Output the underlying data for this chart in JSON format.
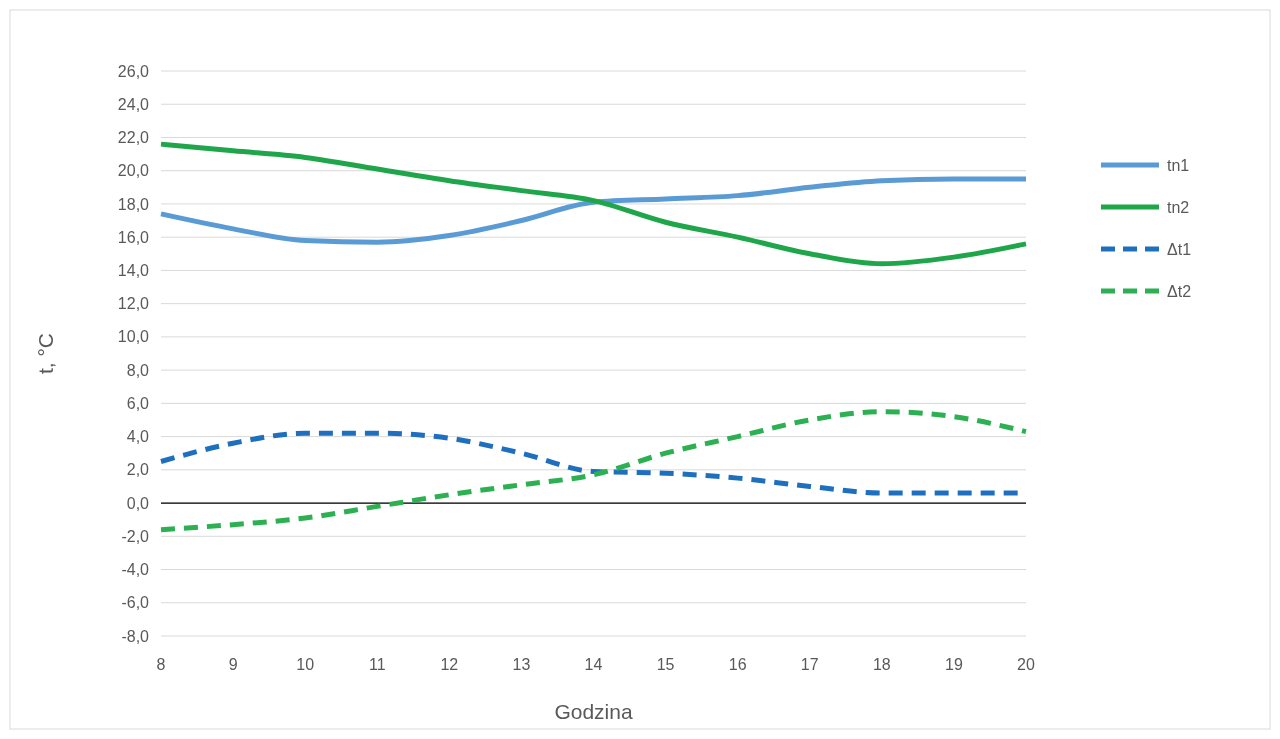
{
  "chart_data": {
    "type": "line",
    "xlabel": "Godzina",
    "ylabel": "t, °C",
    "x": [
      8,
      9,
      10,
      11,
      12,
      13,
      14,
      15,
      16,
      17,
      18,
      19,
      20
    ],
    "xlim": [
      8,
      20
    ],
    "xticks": [
      8,
      9,
      10,
      11,
      12,
      13,
      14,
      15,
      16,
      17,
      18,
      19,
      20
    ],
    "ylim": [
      -8,
      26
    ],
    "yticks": [
      {
        "value": -8,
        "label": "-8,0"
      },
      {
        "value": -6,
        "label": "-6,0"
      },
      {
        "value": -4,
        "label": "-4,0"
      },
      {
        "value": -2,
        "label": "-2,0"
      },
      {
        "value": 0,
        "label": "0,0"
      },
      {
        "value": 2,
        "label": "2,0"
      },
      {
        "value": 4,
        "label": "4,0"
      },
      {
        "value": 6,
        "label": "6,0"
      },
      {
        "value": 8,
        "label": "8,0"
      },
      {
        "value": 10,
        "label": "10,0"
      },
      {
        "value": 12,
        "label": "12,0"
      },
      {
        "value": 14,
        "label": "14,0"
      },
      {
        "value": 16,
        "label": "16,0"
      },
      {
        "value": 18,
        "label": "18,0"
      },
      {
        "value": 20,
        "label": "20,0"
      },
      {
        "value": 22,
        "label": "22,0"
      },
      {
        "value": 24,
        "label": "24,0"
      },
      {
        "value": 26,
        "label": "26,0"
      }
    ],
    "grid": "y",
    "legend": "right",
    "marker": "none",
    "series": [
      {
        "name": "tn1",
        "color": "#5b9bd5",
        "line_style": "solid",
        "values": [
          17.4,
          16.5,
          15.8,
          15.7,
          16.1,
          17.0,
          18.1,
          18.3,
          18.5,
          19.0,
          19.4,
          19.5,
          19.5
        ]
      },
      {
        "name": "tn2",
        "color": "#1fa64a",
        "line_style": "solid",
        "values": [
          21.6,
          21.2,
          20.8,
          20.1,
          19.4,
          18.8,
          18.2,
          16.9,
          16.0,
          15.0,
          14.4,
          14.8,
          15.6
        ]
      },
      {
        "name": "Δt1",
        "color": "#1f6fbf",
        "line_style": "dashed",
        "values": [
          2.5,
          3.6,
          4.2,
          4.2,
          3.9,
          3.0,
          1.9,
          1.8,
          1.5,
          1.0,
          0.6,
          0.6,
          0.6
        ]
      },
      {
        "name": "Δt2",
        "color": "#2db052",
        "line_style": "dashed",
        "values": [
          -1.6,
          -1.3,
          -0.9,
          -0.2,
          0.5,
          1.1,
          1.7,
          3.0,
          4.0,
          5.0,
          5.5,
          5.2,
          4.3
        ]
      }
    ]
  }
}
